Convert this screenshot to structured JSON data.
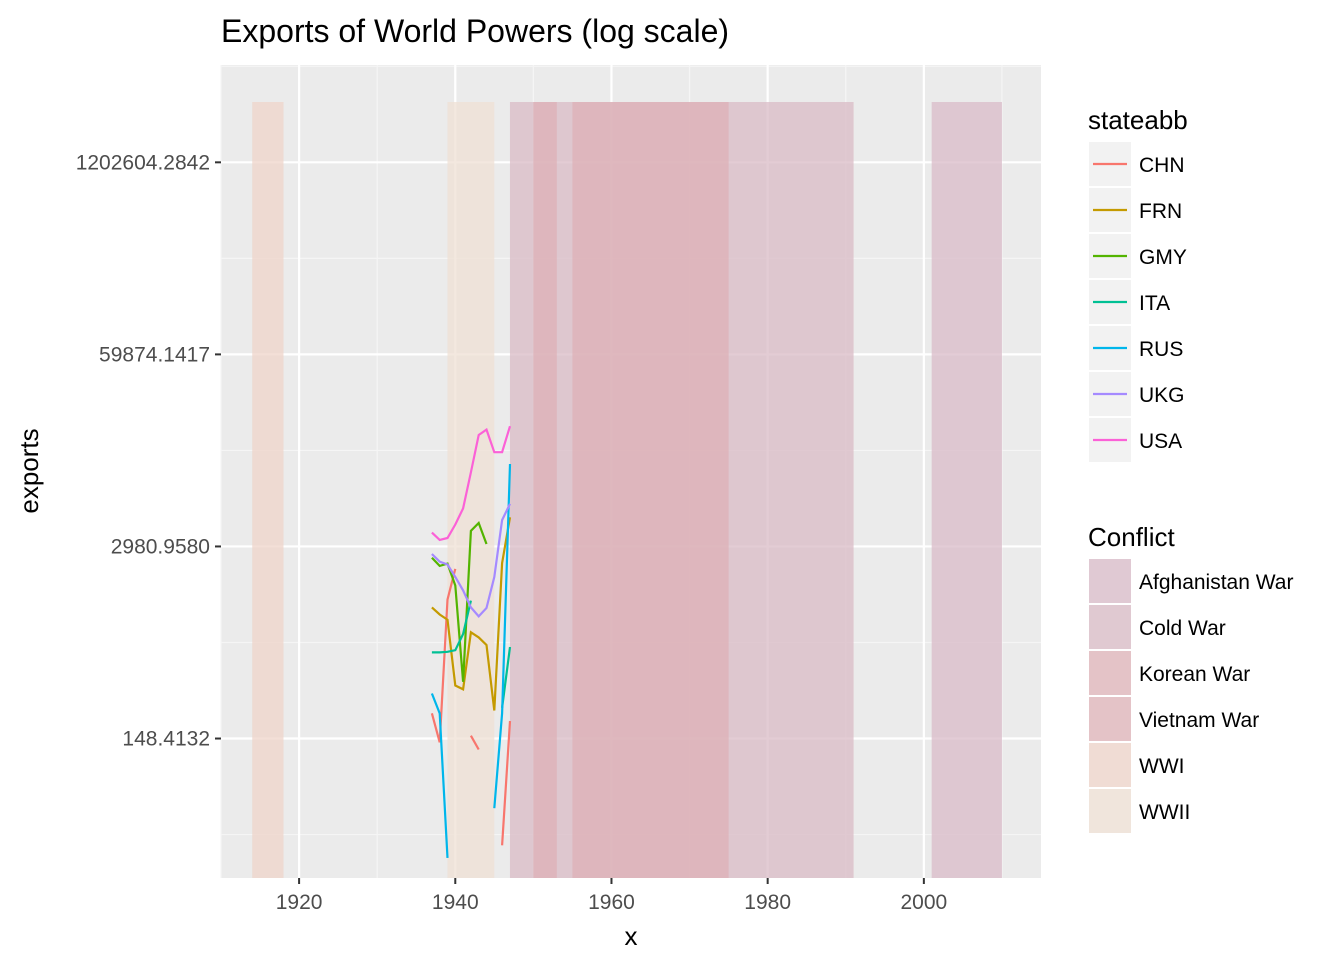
{
  "chart_data": {
    "type": "line",
    "title": "Exports of World Powers (log scale)",
    "xlabel": "x",
    "ylabel": "exports",
    "xlim": [
      1910,
      2015
    ],
    "y_scale": "log",
    "ylim": [
      16.8,
      5500000
    ],
    "grid": true,
    "x_ticks": [
      {
        "value": 1920,
        "label": "1920"
      },
      {
        "value": 1940,
        "label": "1940"
      },
      {
        "value": 1960,
        "label": "1960"
      },
      {
        "value": 1980,
        "label": "1980"
      },
      {
        "value": 2000,
        "label": "2000"
      }
    ],
    "y_ticks": [
      {
        "value": 148.4132,
        "label": "148.4132"
      },
      {
        "value": 2980.958,
        "label": "2980.9580"
      },
      {
        "value": 59874.1417,
        "label": "59874.1417"
      },
      {
        "value": 1202604.2842,
        "label": "1202604.2842"
      }
    ],
    "legend_position": "right",
    "line_legend_title": "stateabb",
    "series": [
      {
        "name": "CHN",
        "color": "#F8766D",
        "points": [
          [
            1937,
            220
          ],
          [
            1938,
            140
          ],
          [
            1939,
            1300
          ],
          [
            1940,
            2100
          ],
          [
            null,
            null
          ],
          [
            1942,
            155
          ],
          [
            1943,
            125
          ],
          [
            null,
            null
          ],
          [
            1946,
            28
          ],
          [
            1947,
            195
          ]
        ]
      },
      {
        "name": "FRN",
        "color": "#C49A00",
        "points": [
          [
            1937,
            1150
          ],
          [
            1938,
            1030
          ],
          [
            1939,
            950
          ],
          [
            1940,
            340
          ],
          [
            1941,
            320
          ],
          [
            1942,
            780
          ],
          [
            1943,
            720
          ],
          [
            1944,
            640
          ],
          [
            1945,
            230
          ],
          [
            1946,
            2300
          ],
          [
            1947,
            4700
          ]
        ]
      },
      {
        "name": "GMY",
        "color": "#53B400",
        "points": [
          [
            1937,
            2500
          ],
          [
            1938,
            2200
          ],
          [
            1939,
            2280
          ],
          [
            1940,
            1620
          ],
          [
            1941,
            360
          ],
          [
            1942,
            3800
          ],
          [
            1943,
            4300
          ],
          [
            1944,
            3100
          ]
        ]
      },
      {
        "name": "ITA",
        "color": "#00C094",
        "points": [
          [
            1937,
            570
          ],
          [
            1938,
            570
          ],
          [
            1939,
            575
          ],
          [
            1940,
            590
          ],
          [
            1941,
            760
          ],
          [
            1942,
            1280
          ],
          [
            null,
            null
          ],
          [
            1946,
            240
          ],
          [
            1947,
            620
          ]
        ]
      },
      {
        "name": "RUS",
        "color": "#00B6EB",
        "points": [
          [
            1937,
            300
          ],
          [
            1938,
            220
          ],
          [
            1939,
            23
          ],
          [
            null,
            null
          ],
          [
            1945,
            50
          ],
          [
            1946,
            220
          ],
          [
            1947,
            10800
          ]
        ]
      },
      {
        "name": "UKG",
        "color": "#A58AFF",
        "points": [
          [
            1937,
            2650
          ],
          [
            1938,
            2350
          ],
          [
            1939,
            2250
          ],
          [
            1940,
            1850
          ],
          [
            1941,
            1500
          ],
          [
            1942,
            1150
          ],
          [
            1943,
            1000
          ],
          [
            1944,
            1140
          ],
          [
            1945,
            1850
          ],
          [
            1946,
            4500
          ],
          [
            1947,
            5800
          ]
        ]
      },
      {
        "name": "USA",
        "color": "#FB61D7",
        "points": [
          [
            1937,
            3700
          ],
          [
            1938,
            3300
          ],
          [
            1939,
            3400
          ],
          [
            1940,
            4200
          ],
          [
            1941,
            5400
          ],
          [
            1942,
            9500
          ],
          [
            1943,
            17000
          ],
          [
            1944,
            18500
          ],
          [
            1945,
            13000
          ],
          [
            1946,
            13000
          ],
          [
            1947,
            19500
          ]
        ]
      }
    ],
    "fill_legend_title": "Conflict",
    "conflicts": [
      {
        "name": "Afghanistan War",
        "color": "#d8b8c6",
        "spans": [
          [
            2001,
            2010
          ]
        ]
      },
      {
        "name": "Cold War",
        "color": "#d8b8c4",
        "spans": [
          [
            1947,
            1991
          ]
        ]
      },
      {
        "name": "Korean War",
        "color": "#deb0b6",
        "spans": [
          [
            1950,
            1953
          ]
        ]
      },
      {
        "name": "Vietnam War",
        "color": "#deb0b6",
        "spans": [
          [
            1955,
            1975
          ]
        ]
      },
      {
        "name": "WWI",
        "color": "#eed3c8",
        "spans": [
          [
            1914,
            1918
          ]
        ]
      },
      {
        "name": "WWII",
        "color": "#eedfd2",
        "spans": [
          [
            1939,
            1945
          ]
        ]
      }
    ]
  }
}
